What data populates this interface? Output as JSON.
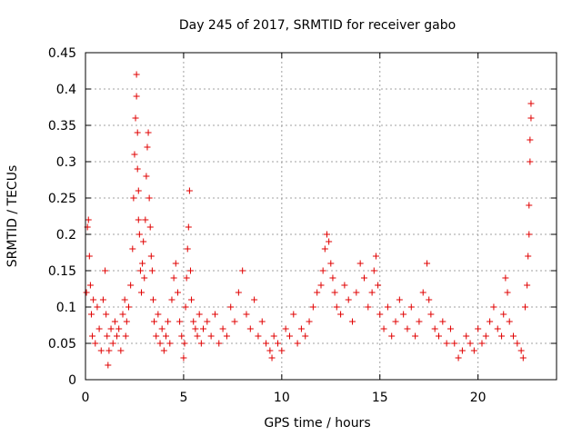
{
  "chart_data": {
    "type": "scatter",
    "title": "Day 245 of 2017, SRMTID for receiver gabo",
    "xlabel": "GPS time / hours",
    "ylabel": "SRMTID / TECUs",
    "xlim": [
      0,
      24
    ],
    "ylim": [
      0,
      0.45
    ],
    "xticks": [
      0,
      5,
      10,
      15,
      20
    ],
    "xtick_labels": [
      "0",
      "5",
      "10",
      "15",
      "20"
    ],
    "yticks": [
      0,
      0.05,
      0.1,
      0.15,
      0.2,
      0.25,
      0.3,
      0.35,
      0.4,
      0.45
    ],
    "ytick_labels": [
      "0",
      "0.05",
      "0.1",
      "0.15",
      "0.2",
      "0.25",
      "0.3",
      "0.35",
      "0.4",
      "0.45"
    ],
    "grid": true,
    "marker": "+",
    "color": "#e00000",
    "series": [
      {
        "name": "SRMTID",
        "x": [
          0.05,
          0.1,
          0.15,
          0.2,
          0.25,
          0.3,
          0.35,
          0.4,
          0.5,
          0.6,
          0.7,
          0.8,
          0.9,
          1.0,
          1.05,
          1.1,
          1.2,
          1.3,
          1.4,
          1.5,
          1.6,
          1.7,
          1.8,
          1.9,
          2.0,
          2.05,
          2.1,
          2.2,
          2.3,
          2.4,
          2.45,
          2.5,
          2.55,
          2.6,
          2.6,
          2.65,
          2.65,
          2.7,
          2.7,
          2.75,
          2.8,
          2.85,
          2.9,
          2.95,
          3.0,
          3.05,
          3.1,
          3.15,
          3.2,
          3.25,
          3.3,
          3.35,
          3.4,
          3.45,
          3.5,
          3.6,
          3.7,
          3.8,
          3.9,
          4.0,
          4.1,
          4.2,
          4.3,
          4.4,
          4.5,
          4.6,
          4.7,
          4.8,
          4.9,
          5.0,
          5.05,
          5.1,
          5.15,
          5.2,
          5.25,
          5.3,
          5.35,
          5.4,
          5.5,
          5.6,
          5.7,
          5.8,
          5.9,
          6.0,
          6.2,
          6.4,
          6.6,
          6.8,
          7.0,
          7.2,
          7.4,
          7.6,
          7.8,
          8.0,
          8.2,
          8.4,
          8.6,
          8.8,
          9.0,
          9.2,
          9.4,
          9.5,
          9.6,
          9.8,
          10.0,
          10.2,
          10.4,
          10.6,
          10.8,
          11.0,
          11.2,
          11.4,
          11.6,
          11.8,
          12.0,
          12.1,
          12.2,
          12.3,
          12.4,
          12.5,
          12.6,
          12.7,
          12.8,
          13.0,
          13.2,
          13.4,
          13.6,
          13.8,
          14.0,
          14.2,
          14.4,
          14.6,
          14.7,
          14.8,
          14.9,
          15.0,
          15.2,
          15.4,
          15.6,
          15.8,
          16.0,
          16.2,
          16.4,
          16.6,
          16.8,
          17.0,
          17.2,
          17.4,
          17.5,
          17.6,
          17.8,
          18.0,
          18.2,
          18.4,
          18.6,
          18.8,
          19.0,
          19.2,
          19.4,
          19.6,
          19.8,
          20.0,
          20.2,
          20.4,
          20.6,
          20.8,
          21.0,
          21.2,
          21.3,
          21.4,
          21.5,
          21.6,
          21.8,
          22.0,
          22.2,
          22.3,
          22.4,
          22.5,
          22.55,
          22.6,
          22.6,
          22.65,
          22.65,
          22.7,
          22.7,
          1.15
        ],
        "values": [
          0.12,
          0.21,
          0.22,
          0.17,
          0.13,
          0.09,
          0.06,
          0.11,
          0.05,
          0.1,
          0.07,
          0.04,
          0.11,
          0.15,
          0.09,
          0.06,
          0.04,
          0.07,
          0.05,
          0.08,
          0.06,
          0.07,
          0.04,
          0.09,
          0.11,
          0.06,
          0.08,
          0.1,
          0.13,
          0.18,
          0.25,
          0.31,
          0.36,
          0.42,
          0.39,
          0.34,
          0.29,
          0.26,
          0.22,
          0.2,
          0.15,
          0.12,
          0.16,
          0.19,
          0.14,
          0.22,
          0.28,
          0.32,
          0.34,
          0.25,
          0.21,
          0.17,
          0.15,
          0.11,
          0.08,
          0.06,
          0.09,
          0.05,
          0.07,
          0.04,
          0.06,
          0.08,
          0.05,
          0.11,
          0.14,
          0.16,
          0.12,
          0.08,
          0.06,
          0.03,
          0.05,
          0.1,
          0.14,
          0.18,
          0.21,
          0.26,
          0.15,
          0.11,
          0.08,
          0.07,
          0.06,
          0.09,
          0.05,
          0.07,
          0.08,
          0.06,
          0.09,
          0.05,
          0.07,
          0.06,
          0.1,
          0.08,
          0.12,
          0.15,
          0.09,
          0.07,
          0.11,
          0.06,
          0.08,
          0.05,
          0.04,
          0.03,
          0.06,
          0.05,
          0.04,
          0.07,
          0.06,
          0.09,
          0.05,
          0.07,
          0.06,
          0.08,
          0.1,
          0.12,
          0.13,
          0.15,
          0.18,
          0.2,
          0.19,
          0.16,
          0.14,
          0.12,
          0.1,
          0.09,
          0.13,
          0.11,
          0.08,
          0.12,
          0.16,
          0.14,
          0.1,
          0.12,
          0.15,
          0.17,
          0.13,
          0.09,
          0.07,
          0.1,
          0.06,
          0.08,
          0.11,
          0.09,
          0.07,
          0.1,
          0.06,
          0.08,
          0.12,
          0.16,
          0.11,
          0.09,
          0.07,
          0.06,
          0.08,
          0.05,
          0.07,
          0.05,
          0.03,
          0.04,
          0.06,
          0.05,
          0.04,
          0.07,
          0.05,
          0.06,
          0.08,
          0.1,
          0.07,
          0.06,
          0.09,
          0.14,
          0.12,
          0.08,
          0.06,
          0.05,
          0.04,
          0.03,
          0.1,
          0.13,
          0.17,
          0.2,
          0.24,
          0.3,
          0.33,
          0.36,
          0.38,
          0.02
        ]
      }
    ]
  }
}
